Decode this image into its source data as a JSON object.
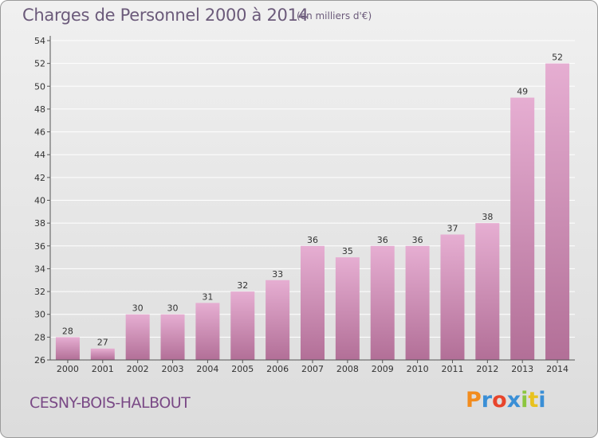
{
  "header": {
    "title": "Charges de Personnel 2000 à 2014",
    "unit": "(en milliers d'€)"
  },
  "footer": {
    "commune": "CESNY-BOIS-HALBOUT",
    "logo": "Proxiti",
    "logo_colors": [
      "#f28c1e",
      "#3a8fd6",
      "#e8452c",
      "#3a8fd6",
      "#8cc63f",
      "#e8c21e",
      "#3a8fd6"
    ]
  },
  "colors": {
    "bar_top": "#e6aed2",
    "bar_bottom": "#b26f97",
    "axis": "#555555",
    "grid": "#ffffff"
  },
  "chart_data": {
    "type": "bar",
    "title": "Charges de Personnel 2000 à 2014",
    "subtitle": "(en milliers d'€)",
    "xlabel": "",
    "ylabel": "",
    "categories": [
      "2000",
      "2001",
      "2002",
      "2003",
      "2004",
      "2005",
      "2006",
      "2007",
      "2008",
      "2009",
      "2010",
      "2011",
      "2012",
      "2013",
      "2014"
    ],
    "values": [
      28,
      27,
      30,
      30,
      31,
      32,
      33,
      36,
      35,
      36,
      36,
      37,
      38,
      49,
      52
    ],
    "ylim": [
      26,
      54
    ],
    "yticks": [
      26,
      28,
      30,
      32,
      34,
      36,
      38,
      40,
      42,
      44,
      46,
      48,
      50,
      52,
      54
    ],
    "grid": true,
    "data_labels": true
  }
}
